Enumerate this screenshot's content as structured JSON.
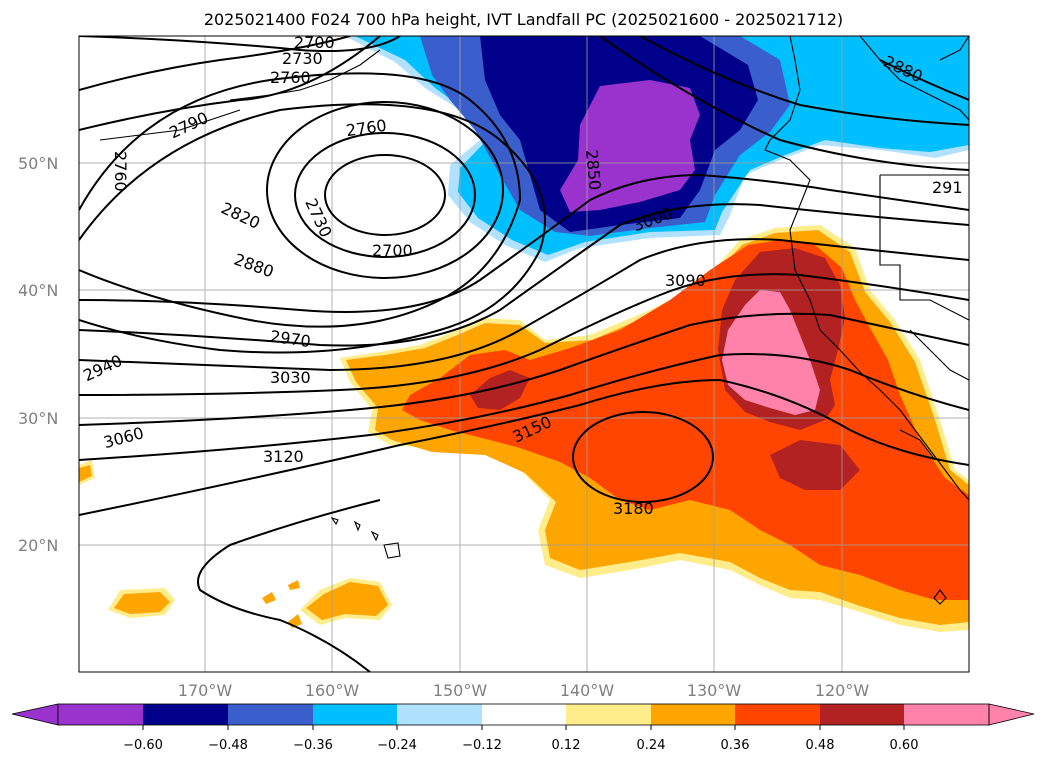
{
  "title": "2025021400 F024 700 hPa height, IVT Landfall PC (2025021600 - 2025021712)",
  "map": {
    "lat_labels": [
      "50°N",
      "40°N",
      "30°N",
      "20°N"
    ],
    "lon_labels": [
      "170°W",
      "160°W",
      "150°W",
      "140°W",
      "130°W",
      "120°W"
    ],
    "contour_labels": [
      "2700",
      "2730",
      "2760",
      "2790",
      "2760",
      "2760",
      "2730",
      "2700",
      "2820",
      "2880",
      "2850",
      "3000",
      "2880",
      "291",
      "2940",
      "2970",
      "3030",
      "3060",
      "3090",
      "3120",
      "3150",
      "3180"
    ],
    "layer_colors": {
      "neg_060": "#9a32cd",
      "neg_048": "#00008b",
      "neg_036": "#3a5fcd",
      "neg_024": "#00bfff",
      "neg_012": "#b0e2ff",
      "pos_012": "#ffec8b",
      "pos_024": "#ffa500",
      "pos_036": "#ff4500",
      "pos_048": "#b22222",
      "pos_060": "#ff82ab"
    }
  },
  "colorbar": {
    "tick_labels": [
      "−0.60",
      "−0.48",
      "−0.36",
      "−0.24",
      "−0.12",
      "0.12",
      "0.24",
      "0.36",
      "0.48",
      "0.60"
    ],
    "colors": [
      "#9a32cd",
      "#00008b",
      "#3a5fcd",
      "#00bfff",
      "#b0e2ff",
      "#ffffff",
      "#ffec8b",
      "#ffa500",
      "#ff4500",
      "#b22222",
      "#ff82ab"
    ]
  }
}
